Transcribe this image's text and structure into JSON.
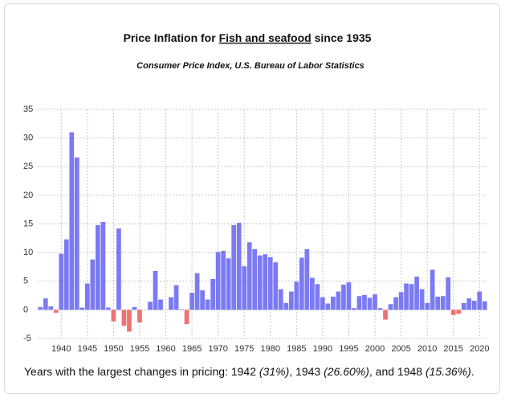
{
  "chart_data": {
    "type": "bar",
    "title": "Price Inflation for",
    "title_link": "Fish and seafood",
    "title_end": "since 1935",
    "subtitle": "Consumer Price Index, U.S. Bureau of Labor Statistics",
    "x": [
      1936,
      1937,
      1938,
      1939,
      1940,
      1941,
      1942,
      1943,
      1944,
      1945,
      1946,
      1947,
      1948,
      1949,
      1950,
      1951,
      1952,
      1953,
      1954,
      1955,
      1956,
      1957,
      1958,
      1959,
      1960,
      1961,
      1962,
      1963,
      1964,
      1965,
      1966,
      1967,
      1968,
      1969,
      1970,
      1971,
      1972,
      1973,
      1974,
      1975,
      1976,
      1977,
      1978,
      1979,
      1980,
      1981,
      1982,
      1983,
      1984,
      1985,
      1986,
      1987,
      1988,
      1989,
      1990,
      1991,
      1992,
      1993,
      1994,
      1995,
      1996,
      1997,
      1998,
      1999,
      2000,
      2001,
      2002,
      2003,
      2004,
      2005,
      2006,
      2007,
      2008,
      2009,
      2010,
      2011,
      2012,
      2013,
      2014,
      2015,
      2016,
      2017,
      2018,
      2019,
      2020,
      2021
    ],
    "values": [
      0.5,
      2.0,
      0.6,
      -0.5,
      9.8,
      12.3,
      31,
      26.6,
      0.4,
      4.6,
      8.8,
      14.8,
      15.36,
      0.4,
      -2.0,
      14.2,
      -2.8,
      -3.8,
      0.5,
      -2.2,
      0,
      1.4,
      6.8,
      1.8,
      0,
      2.2,
      4.3,
      0.1,
      -2.5,
      3.0,
      6.4,
      3.4,
      1.8,
      5.4,
      10.1,
      10.3,
      9.0,
      14.8,
      15.2,
      7.6,
      11.8,
      10.6,
      9.5,
      9.7,
      9.2,
      8.3,
      3.6,
      1.2,
      3.2,
      4.9,
      9.1,
      10.6,
      5.6,
      4.5,
      2.2,
      1.1,
      2.3,
      3.2,
      4.4,
      4.8,
      0.3,
      2.4,
      2.6,
      2.1,
      2.7,
      0.3,
      -1.7,
      1.0,
      2.2,
      3.1,
      4.6,
      4.5,
      5.8,
      3.6,
      1.2,
      7.0,
      2.3,
      2.4,
      5.7,
      -0.9,
      -0.7,
      1.2,
      2.0,
      1.6,
      3.2,
      1.5
    ],
    "color": "#7b7af2",
    "negative_color": "#ee7272",
    "xlim": [
      1935.5,
      2021.5
    ],
    "xticks": [
      1940,
      1945,
      1950,
      1955,
      1960,
      1965,
      1970,
      1975,
      1980,
      1985,
      1990,
      1995,
      2000,
      2005,
      2010,
      2015,
      2020
    ],
    "ylim": [
      -5,
      35
    ],
    "yticks": [
      -5,
      0,
      5,
      10,
      15,
      20,
      25,
      30,
      35
    ],
    "grid": true
  },
  "caption": [
    "Years with the largest changes in pricing: 1942 ",
    {
      "italic": "(31%)"
    },
    ", 1943 ",
    {
      "italic": "(26.60%)"
    },
    ", and 1948 ",
    {
      "italic": "(15.36%)"
    },
    "."
  ]
}
